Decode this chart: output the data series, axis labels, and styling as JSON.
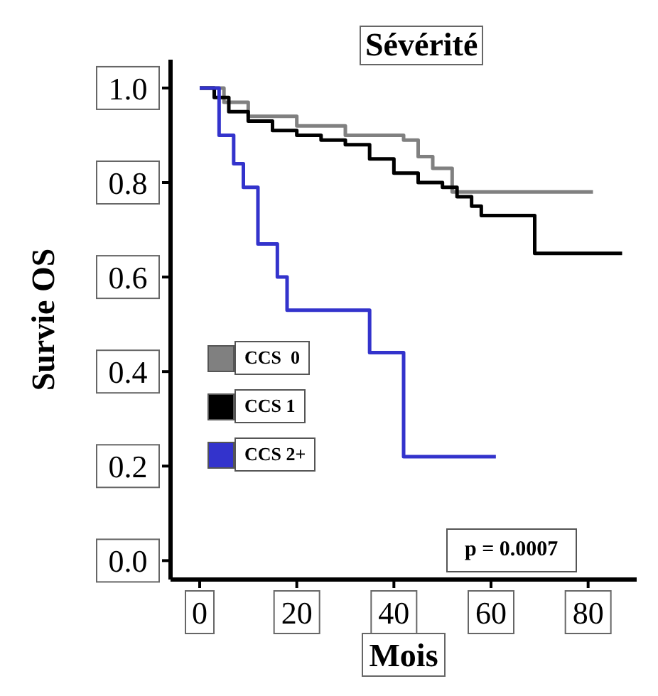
{
  "chart_data": {
    "type": "step",
    "title": "Sévérité",
    "xlabel": "Mois",
    "ylabel": "Survie OS",
    "xlim": [
      -6,
      90
    ],
    "xticks": [
      0,
      20,
      40,
      60,
      80
    ],
    "ylim": [
      -0.04,
      1.06
    ],
    "yticks": [
      {
        "value": 0,
        "label": "0.0"
      },
      0.2,
      0.4,
      0.6,
      0.8,
      {
        "value": 1,
        "label": "1.0"
      }
    ],
    "legend": "left",
    "grid": false,
    "marker": "none",
    "annotations": [
      "p = 0.0007"
    ],
    "series": [
      {
        "name": "CCS  0",
        "color": "#808080",
        "x": [
          0,
          5,
          10,
          20,
          30,
          42,
          45,
          48,
          52,
          81
        ],
        "values": [
          1,
          0.97,
          0.94,
          0.92,
          0.9,
          0.89,
          0.855,
          0.83,
          0.78,
          0.78
        ]
      },
      {
        "name": "CCS 1",
        "color": "#000000",
        "x": [
          0,
          3,
          6,
          10,
          15,
          20,
          25,
          30,
          35,
          40,
          45,
          50,
          53,
          56,
          58,
          69,
          87
        ],
        "values": [
          1,
          0.98,
          0.95,
          0.93,
          0.91,
          0.9,
          0.89,
          0.88,
          0.85,
          0.82,
          0.8,
          0.79,
          0.77,
          0.75,
          0.73,
          0.65,
          0.65
        ]
      },
      {
        "name": "CCS 2+",
        "color": "#3333cc",
        "x": [
          0,
          4,
          7,
          9,
          12,
          16,
          18,
          35,
          42,
          61
        ],
        "values": [
          1,
          0.9,
          0.84,
          0.79,
          0.67,
          0.6,
          0.53,
          0.44,
          0.22,
          0.22
        ]
      }
    ]
  }
}
